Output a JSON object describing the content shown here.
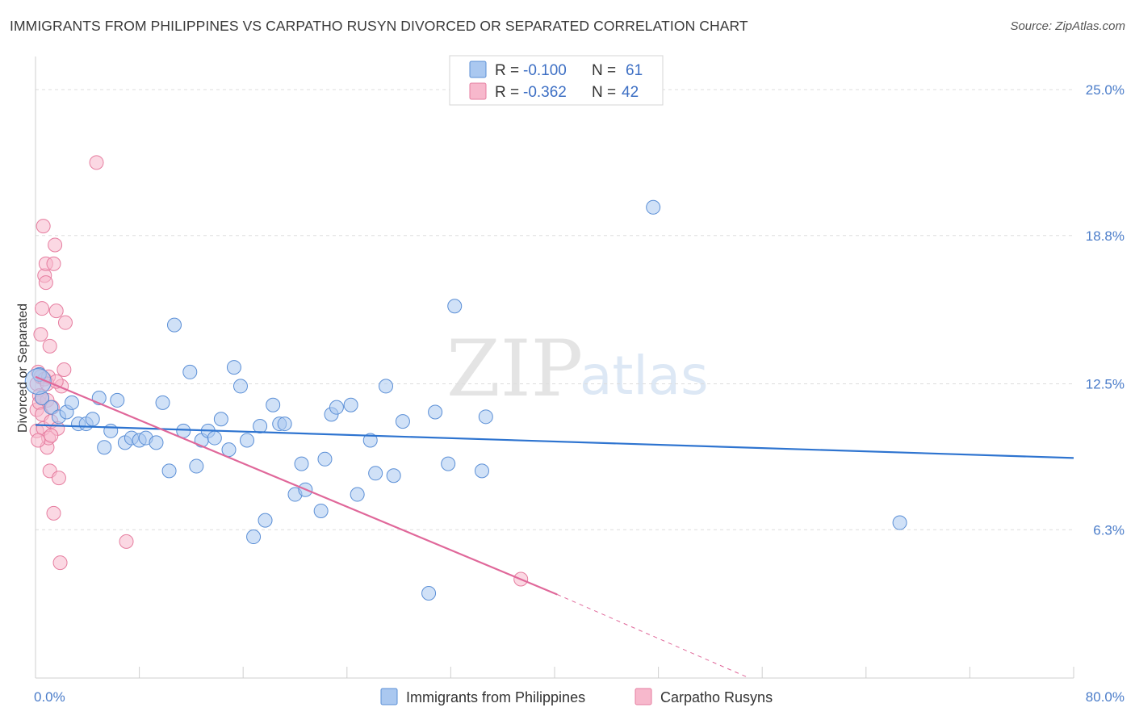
{
  "title": "IMMIGRANTS FROM PHILIPPINES VS CARPATHO RUSYN DIVORCED OR SEPARATED CORRELATION CHART",
  "source": "Source: ZipAtlas.com",
  "watermark": {
    "zip": "ZIP",
    "atlas": "atlas"
  },
  "colors": {
    "blue_fill": "#aac8f0",
    "blue_stroke": "#5b8fd6",
    "blue_line": "#2e74d0",
    "pink_fill": "#f7b8cc",
    "pink_stroke": "#e67ea0",
    "pink_line": "#e0689a",
    "tick_label": "#4a7cc9",
    "grid": "#dddddd"
  },
  "legend": {
    "rows": [
      {
        "r_label": "R = ",
        "r_value": "-0.100",
        "n_label": "N = ",
        "n_value": "61"
      },
      {
        "r_label": "R = ",
        "r_value": "-0.362",
        "n_label": "N = ",
        "n_value": "42"
      }
    ]
  },
  "chart_data": {
    "type": "scatter",
    "title": "IMMIGRANTS FROM PHILIPPINES VS CARPATHO RUSYN DIVORCED OR SEPARATED CORRELATION CHART",
    "xlabel": "",
    "ylabel": "Divorced or Separated",
    "xlim": [
      0,
      80
    ],
    "ylim": [
      0,
      26.2
    ],
    "x_tick_labels": [
      "0.0%",
      "80.0%"
    ],
    "y_ticks": [
      6.3,
      12.5,
      18.8,
      25.0
    ],
    "y_tick_labels": [
      "6.3%",
      "12.5%",
      "18.8%",
      "25.0%"
    ],
    "grid": true,
    "legend_placement": "top-center and bottom",
    "series": [
      {
        "name": "Immigrants from Philippines",
        "r": -0.1,
        "n": 61,
        "trend": {
          "x": [
            0,
            80
          ],
          "y": [
            10.75,
            9.35
          ]
        },
        "points": [
          [
            0.3,
            12.9
          ],
          [
            0.5,
            11.9
          ],
          [
            1.2,
            11.5
          ],
          [
            1.8,
            11.1
          ],
          [
            2.4,
            11.3
          ],
          [
            2.8,
            11.7
          ],
          [
            3.3,
            10.8
          ],
          [
            3.9,
            10.8
          ],
          [
            4.4,
            11.0
          ],
          [
            4.9,
            11.9
          ],
          [
            5.3,
            9.8
          ],
          [
            5.8,
            10.5
          ],
          [
            6.3,
            11.8
          ],
          [
            6.9,
            10.0
          ],
          [
            7.4,
            10.2
          ],
          [
            8.0,
            10.1
          ],
          [
            8.5,
            10.2
          ],
          [
            9.3,
            10.0
          ],
          [
            9.8,
            11.7
          ],
          [
            10.3,
            8.8
          ],
          [
            10.7,
            15.0
          ],
          [
            11.4,
            10.5
          ],
          [
            11.9,
            13.0
          ],
          [
            12.4,
            9.0
          ],
          [
            12.8,
            10.1
          ],
          [
            13.3,
            10.5
          ],
          [
            13.8,
            10.2
          ],
          [
            14.3,
            11.0
          ],
          [
            14.9,
            9.7
          ],
          [
            15.3,
            13.2
          ],
          [
            15.8,
            12.4
          ],
          [
            16.3,
            10.1
          ],
          [
            16.8,
            6.0
          ],
          [
            17.3,
            10.7
          ],
          [
            17.7,
            6.7
          ],
          [
            18.3,
            11.6
          ],
          [
            18.8,
            10.8
          ],
          [
            19.2,
            10.8
          ],
          [
            20.0,
            7.8
          ],
          [
            20.5,
            9.1
          ],
          [
            20.8,
            8.0
          ],
          [
            22.0,
            7.1
          ],
          [
            22.3,
            9.3
          ],
          [
            22.8,
            11.2
          ],
          [
            23.2,
            11.5
          ],
          [
            24.3,
            11.6
          ],
          [
            24.8,
            7.8
          ],
          [
            25.8,
            10.1
          ],
          [
            26.2,
            8.7
          ],
          [
            27.0,
            12.4
          ],
          [
            27.6,
            8.6
          ],
          [
            28.3,
            10.9
          ],
          [
            30.3,
            3.6
          ],
          [
            30.8,
            11.3
          ],
          [
            31.8,
            9.1
          ],
          [
            32.3,
            15.8
          ],
          [
            34.4,
            8.8
          ],
          [
            34.7,
            11.1
          ],
          [
            47.6,
            20.0
          ],
          [
            66.6,
            6.6
          ],
          [
            0.2,
            12.6
          ]
        ]
      },
      {
        "name": "Carpatho Rusyns",
        "r": -0.362,
        "n": 42,
        "trend": {
          "x": [
            0,
            40.2
          ],
          "y": [
            12.8,
            3.55
          ]
        },
        "trend_dashed": {
          "x": [
            40.2,
            55
          ],
          "y": [
            3.55,
            0.0
          ]
        },
        "points": [
          [
            0.1,
            12.5
          ],
          [
            0.1,
            11.4
          ],
          [
            0.1,
            10.5
          ],
          [
            0.2,
            13.0
          ],
          [
            0.3,
            12.0
          ],
          [
            0.3,
            11.7
          ],
          [
            0.4,
            12.8
          ],
          [
            0.4,
            14.6
          ],
          [
            0.5,
            15.7
          ],
          [
            0.5,
            11.2
          ],
          [
            0.6,
            19.2
          ],
          [
            0.6,
            10.6
          ],
          [
            0.7,
            17.1
          ],
          [
            0.7,
            12.7
          ],
          [
            0.8,
            17.6
          ],
          [
            0.8,
            16.8
          ],
          [
            0.9,
            11.8
          ],
          [
            0.9,
            9.8
          ],
          [
            1.0,
            10.2
          ],
          [
            1.0,
            12.8
          ],
          [
            1.1,
            14.1
          ],
          [
            1.1,
            8.8
          ],
          [
            1.2,
            10.9
          ],
          [
            1.3,
            11.5
          ],
          [
            1.4,
            17.6
          ],
          [
            1.4,
            7.0
          ],
          [
            1.5,
            18.4
          ],
          [
            1.6,
            15.6
          ],
          [
            1.7,
            10.6
          ],
          [
            1.8,
            8.5
          ],
          [
            1.9,
            4.9
          ],
          [
            2.0,
            12.4
          ],
          [
            2.2,
            13.1
          ],
          [
            2.3,
            15.1
          ],
          [
            4.7,
            21.9
          ],
          [
            7.0,
            5.8
          ],
          [
            0.2,
            10.1
          ],
          [
            0.5,
            11.9
          ],
          [
            0.9,
            12.5
          ],
          [
            1.2,
            10.3
          ],
          [
            1.6,
            12.6
          ],
          [
            37.4,
            4.2
          ]
        ]
      }
    ]
  }
}
